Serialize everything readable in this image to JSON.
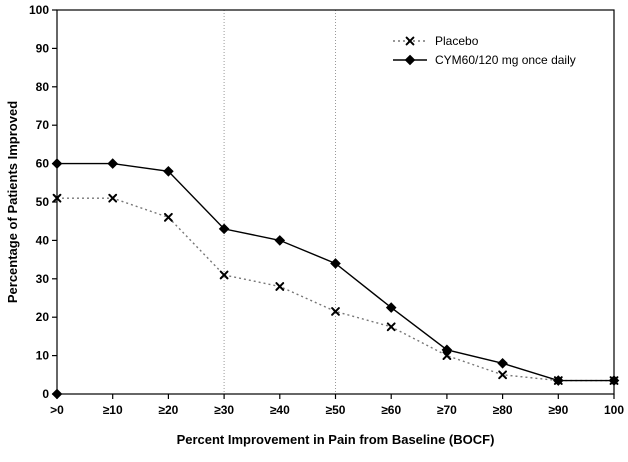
{
  "figure": {
    "type": "line-chart-figure"
  },
  "chart_data": {
    "type": "line",
    "title": "",
    "xlabel": "Percent Improvement in Pain from Baseline (BOCF)",
    "ylabel": "Percentage of Patients Improved",
    "ylim": [
      0,
      100
    ],
    "ytick_step": 10,
    "grid": false,
    "legend_position": "top-right",
    "categories": [
      ">0",
      "≥10",
      "≥20",
      "≥30",
      "≥40",
      "≥50",
      "≥60",
      "≥70",
      "≥80",
      "≥90",
      "100"
    ],
    "series": [
      {
        "name": "Placebo",
        "marker": "x",
        "line_style": "dotted",
        "line_color": "#777777",
        "marker_color": "#000000",
        "values": [
          51,
          51,
          46,
          31,
          28,
          21.5,
          17.5,
          10,
          5,
          3.5,
          3.5
        ]
      },
      {
        "name": "CYM60/120 mg once daily",
        "marker": "diamond",
        "line_style": "solid",
        "line_color": "#000000",
        "marker_color": "#000000",
        "values": [
          60,
          60,
          58,
          43,
          40,
          34,
          22.5,
          11.5,
          8,
          3.5,
          3.5
        ]
      }
    ],
    "reference_lines": {
      "x_indices": [
        3,
        5
      ],
      "style": "dotted",
      "color": "#999999"
    },
    "origin_marker": {
      "x_index": 0,
      "y": 0,
      "marker": "diamond"
    }
  }
}
